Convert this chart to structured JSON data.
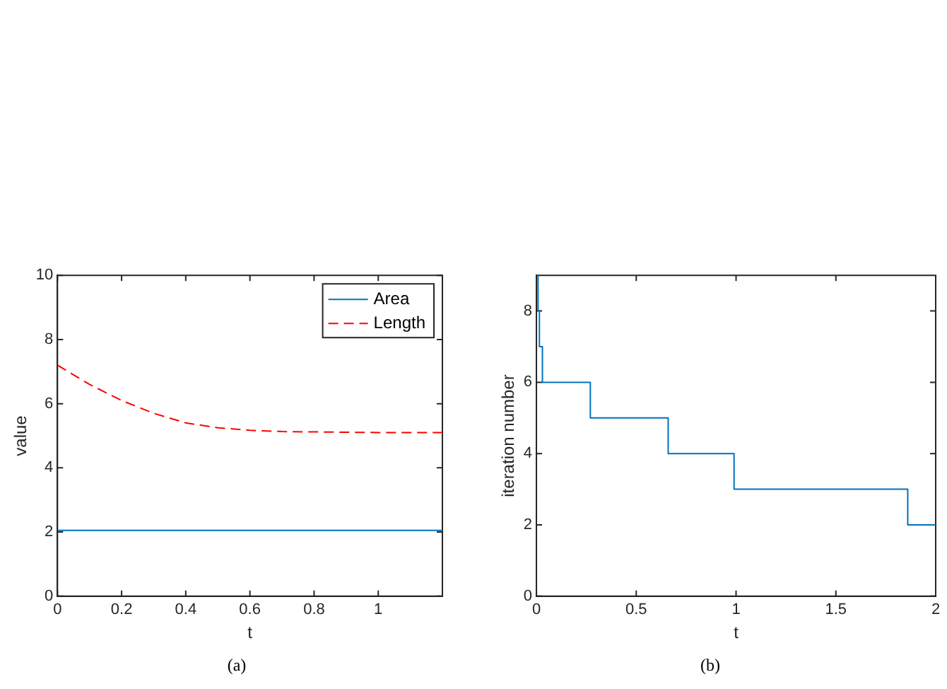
{
  "chart_data": [
    {
      "type": "line",
      "xlabel": "t",
      "ylabel": "value",
      "annotations": [
        "(a)"
      ],
      "legend": "top right",
      "xlim": [
        0,
        1.2
      ],
      "xticks": [
        0,
        0.2,
        0.4,
        0.6,
        0.8,
        1
      ],
      "ylim": [
        0,
        10
      ],
      "yticks": [
        0,
        2,
        4,
        6,
        8,
        10
      ],
      "x": [
        0,
        0.1,
        0.2,
        0.3,
        0.4,
        0.5,
        0.6,
        0.7,
        0.8,
        0.9,
        1.0,
        1.1,
        1.2
      ],
      "series": [
        {
          "name": "Area",
          "color": "#0072bd",
          "line_style": "solid",
          "values": [
            2.05,
            2.05,
            2.05,
            2.05,
            2.05,
            2.05,
            2.05,
            2.05,
            2.05,
            2.05,
            2.05,
            2.05,
            2.05
          ]
        },
        {
          "name": "Length",
          "color": "#ff0000",
          "line_style": "dashed",
          "values": [
            7.2,
            6.6,
            6.1,
            5.7,
            5.4,
            5.25,
            5.17,
            5.13,
            5.12,
            5.11,
            5.1,
            5.1,
            5.1
          ]
        }
      ]
    },
    {
      "type": "step",
      "xlabel": "t",
      "ylabel": "iteration number",
      "annotations": [
        "(b)"
      ],
      "xlim": [
        0,
        2
      ],
      "xticks": [
        0,
        0.5,
        1,
        1.5,
        2
      ],
      "ylim": [
        0,
        9
      ],
      "yticks": [
        0,
        2,
        4,
        6,
        8
      ],
      "x": [
        0.003,
        0.008,
        0.015,
        0.03,
        0.27,
        0.66,
        0.99,
        1.86,
        2
      ],
      "series": [
        {
          "color": "#0072bd",
          "values": [
            9,
            8,
            7,
            6,
            5,
            4,
            3,
            2,
            2
          ]
        }
      ]
    }
  ]
}
